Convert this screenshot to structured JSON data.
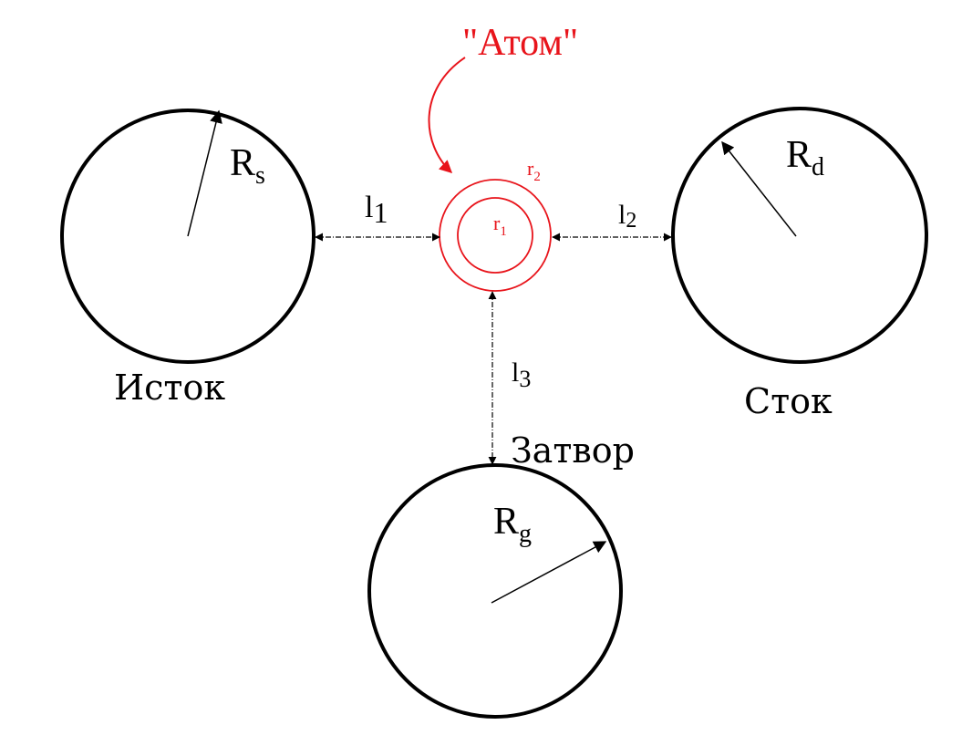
{
  "colors": {
    "black": "#000000",
    "red": "#e8141b"
  },
  "atom": {
    "title": "\"Атом\"",
    "r2_base": "r",
    "r2_sub": "2",
    "r1_base": "r",
    "r1_sub": "1"
  },
  "source": {
    "caption": "Исток",
    "radius_base": "R",
    "radius_sub": "s"
  },
  "drain": {
    "caption": "Сток",
    "radius_base": "R",
    "radius_sub": "d"
  },
  "gate": {
    "caption": "Затвор",
    "radius_base": "R",
    "radius_sub": "g"
  },
  "distances": {
    "l1_base": "l",
    "l1_sub": "1",
    "l2_base": "l",
    "l2_sub": "2",
    "l3_base": "l",
    "l3_sub": "3"
  }
}
